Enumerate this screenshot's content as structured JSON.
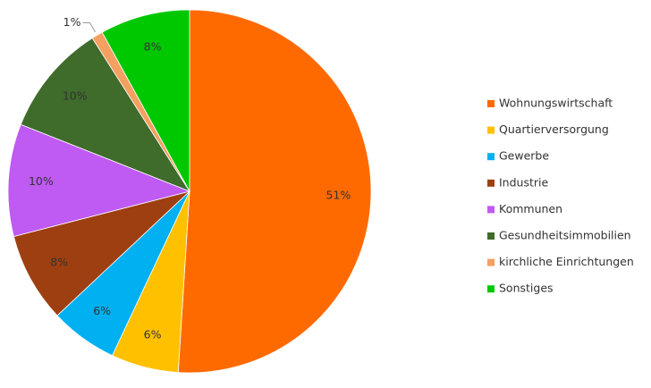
{
  "chart_data": {
    "type": "pie",
    "categories": [
      "Wohnungswirtschaft",
      "Quartierversorgung",
      "Gewerbe",
      "Industrie",
      "Kommunen",
      "Gesundheitsimmobilien",
      "kirchliche Einrichtungen",
      "Sonstiges"
    ],
    "values": [
      51,
      6,
      6,
      8,
      10,
      10,
      1,
      8
    ],
    "value_labels": [
      "51%",
      "6%",
      "6%",
      "8%",
      "10%",
      "10%",
      "1%",
      "8%"
    ],
    "colors": [
      "#ff6a00",
      "#ffc000",
      "#00b0f0",
      "#9e3f12",
      "#bf5af2",
      "#3f6b2b",
      "#f4a060",
      "#00c800"
    ],
    "legend": "right"
  }
}
